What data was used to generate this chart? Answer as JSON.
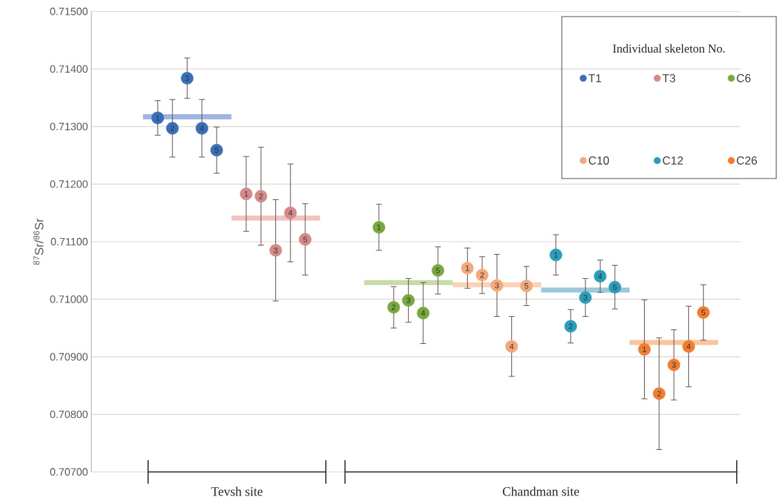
{
  "chart_data": {
    "type": "scatter",
    "ylabel": "$^{87}$Sr/$^{86}$Sr",
    "legend_title": "Individual skeleton No.",
    "categories": [
      null,
      null,
      null,
      null,
      null,
      null,
      null,
      null,
      null,
      null,
      null,
      null,
      null,
      null,
      null,
      null,
      null,
      null,
      null,
      null,
      null,
      null,
      null,
      null,
      null,
      null,
      null,
      null,
      null,
      null,
      null,
      null,
      null,
      null,
      null,
      null,
      null,
      null,
      null,
      null,
      null,
      null,
      null,
      null
    ],
    "ylim": [
      0.707,
      0.715
    ],
    "yticks": [
      {
        "value": 0.707,
        "label": "0.70700"
      },
      {
        "value": 0.708,
        "label": "0.70800"
      },
      {
        "value": 0.709,
        "label": "0.70900"
      },
      {
        "value": 0.71,
        "label": "0.71000"
      },
      {
        "value": 0.711,
        "label": "0.71100"
      },
      {
        "value": 0.712,
        "label": "0.71200"
      },
      {
        "value": 0.713,
        "label": "0.71300"
      },
      {
        "value": 0.714,
        "label": "0.71400"
      },
      {
        "value": 0.715,
        "label": "0.71500"
      }
    ],
    "grid": "y",
    "legend": "top right",
    "marker": "circle",
    "annotations": [
      "Tevsh site",
      "Chandman site",
      {
        "text": "1",
        "y": 0.71315
      },
      {
        "text": "2",
        "y": 0.71297
      },
      {
        "text": "3",
        "y": 0.71384
      },
      {
        "text": "4",
        "y": 0.71297
      },
      {
        "text": "5",
        "y": 0.71259
      },
      {
        "text": "1",
        "y": 0.71183
      },
      {
        "text": "2",
        "y": 0.71179
      },
      {
        "text": "3",
        "y": 0.71085
      },
      {
        "text": "4",
        "y": 0.7115
      },
      {
        "text": "5",
        "y": 0.71104
      },
      {
        "text": "1",
        "y": 0.71125
      },
      {
        "text": "2",
        "y": 0.70986
      },
      {
        "text": "3",
        "y": 0.70998
      },
      {
        "text": "4",
        "y": 0.70976
      },
      {
        "text": "5",
        "y": 0.7105
      },
      {
        "text": "1",
        "y": 0.71054
      },
      {
        "text": "2",
        "y": 0.71042
      },
      {
        "text": "3",
        "y": 0.71024
      },
      {
        "text": "4",
        "y": 0.70918
      },
      {
        "text": "5",
        "y": 0.71023
      },
      {
        "text": "1",
        "y": 0.71077
      },
      {
        "text": "2",
        "y": 0.70953
      },
      {
        "text": "3",
        "y": 0.71003
      },
      {
        "text": "4",
        "y": 0.7104
      },
      {
        "text": "5",
        "y": 0.71021
      },
      {
        "text": "1",
        "y": 0.70913
      },
      {
        "text": "2",
        "y": 0.70836
      },
      {
        "text": "3",
        "y": 0.70886
      },
      {
        "text": "4",
        "y": 0.70918
      },
      {
        "text": "5",
        "y": 0.70977
      }
    ],
    "series": [
      {
        "type": "line",
        "marker": "none",
        "color": "#9fb4e0",
        "values": [
          null,
          null,
          null,
          0.71317,
          0.71317,
          0.71317,
          0.71317,
          0.71317,
          0.71317,
          0.71317,
          null,
          null,
          null,
          null,
          null,
          null,
          null,
          null,
          null,
          null,
          null,
          null,
          null,
          null,
          null,
          null,
          null,
          null,
          null,
          null,
          null,
          null,
          null,
          null,
          null,
          null,
          null,
          null,
          null,
          null,
          null,
          null,
          null,
          null
        ]
      },
      {
        "type": "line",
        "marker": "none",
        "color": "#f2c2c0",
        "values": [
          null,
          null,
          null,
          null,
          null,
          null,
          null,
          null,
          null,
          0.71141,
          0.71141,
          0.71141,
          0.71141,
          0.71141,
          0.71141,
          0.71141,
          null,
          null,
          null,
          null,
          null,
          null,
          null,
          null,
          null,
          null,
          null,
          null,
          null,
          null,
          null,
          null,
          null,
          null,
          null,
          null,
          null,
          null,
          null,
          null,
          null,
          null,
          null,
          null
        ]
      },
      {
        "type": "line",
        "marker": "none",
        "color": "#c8dcaa",
        "values": [
          null,
          null,
          null,
          null,
          null,
          null,
          null,
          null,
          null,
          null,
          null,
          null,
          null,
          null,
          null,
          null,
          null,
          null,
          0.71029,
          0.71029,
          0.71029,
          0.71029,
          0.71029,
          0.71029,
          0.71029,
          null,
          null,
          null,
          null,
          null,
          null,
          null,
          null,
          null,
          null,
          null,
          null,
          null,
          null,
          null,
          null,
          null,
          null,
          null
        ]
      },
      {
        "type": "line",
        "marker": "none",
        "color": "#f9d2b8",
        "values": [
          null,
          null,
          null,
          null,
          null,
          null,
          null,
          null,
          null,
          null,
          null,
          null,
          null,
          null,
          null,
          null,
          null,
          null,
          null,
          null,
          null,
          null,
          null,
          null,
          0.71025,
          0.71025,
          0.71025,
          0.71025,
          0.71025,
          0.71025,
          0.71025,
          null,
          null,
          null,
          null,
          null,
          null,
          null,
          null,
          null,
          null,
          null,
          null,
          null
        ]
      },
      {
        "type": "line",
        "marker": "none",
        "color": "#9cc8dc",
        "values": [
          null,
          null,
          null,
          null,
          null,
          null,
          null,
          null,
          null,
          null,
          null,
          null,
          null,
          null,
          null,
          null,
          null,
          null,
          null,
          null,
          null,
          null,
          null,
          null,
          null,
          null,
          null,
          null,
          null,
          null,
          0.71016,
          0.71016,
          0.71016,
          0.71016,
          0.71016,
          0.71016,
          0.71016,
          null,
          null,
          null,
          null,
          null,
          null,
          null
        ]
      },
      {
        "type": "line",
        "marker": "none",
        "color": "#f9c4a0",
        "values": [
          null,
          null,
          null,
          null,
          null,
          null,
          null,
          null,
          null,
          null,
          null,
          null,
          null,
          null,
          null,
          null,
          null,
          null,
          null,
          null,
          null,
          null,
          null,
          null,
          null,
          null,
          null,
          null,
          null,
          null,
          null,
          null,
          null,
          null,
          null,
          null,
          0.70925,
          0.70925,
          0.70925,
          0.70925,
          0.70925,
          0.70925,
          0.70925,
          null
        ]
      },
      {
        "name": "T1",
        "color": "#3a6fb8",
        "values": [
          null,
          null,
          null,
          null,
          0.71315,
          0.71297,
          0.71384,
          0.71297,
          0.71259,
          null,
          null,
          null,
          null,
          null,
          null,
          null,
          null,
          null,
          null,
          null,
          null,
          null,
          null,
          null,
          null,
          null,
          null,
          null,
          null,
          null,
          null,
          null,
          null,
          null,
          null,
          null,
          null,
          null,
          null,
          null,
          null,
          null,
          null,
          null
        ],
        "errors": [
          null,
          null,
          null,
          null,
          0.0003,
          0.0005,
          0.00035,
          0.0005,
          0.0004,
          null,
          null,
          null,
          null,
          null,
          null,
          null,
          null,
          null,
          null,
          null,
          null,
          null,
          null,
          null,
          null,
          null,
          null,
          null,
          null,
          null,
          null,
          null,
          null,
          null,
          null,
          null,
          null,
          null,
          null,
          null,
          null,
          null,
          null,
          null
        ]
      },
      {
        "name": "T3",
        "color": "#d48a88",
        "values": [
          null,
          null,
          null,
          null,
          null,
          null,
          null,
          null,
          null,
          null,
          0.71183,
          0.71179,
          0.71085,
          0.7115,
          0.71104,
          null,
          null,
          null,
          null,
          null,
          null,
          null,
          null,
          null,
          null,
          null,
          null,
          null,
          null,
          null,
          null,
          null,
          null,
          null,
          null,
          null,
          null,
          null,
          null,
          null,
          null,
          null,
          null,
          null
        ],
        "errors": [
          null,
          null,
          null,
          null,
          null,
          null,
          null,
          null,
          null,
          null,
          0.00065,
          0.00085,
          0.00088,
          0.00085,
          0.00062,
          null,
          null,
          null,
          null,
          null,
          null,
          null,
          null,
          null,
          null,
          null,
          null,
          null,
          null,
          null,
          null,
          null,
          null,
          null,
          null,
          null,
          null,
          null,
          null,
          null,
          null,
          null,
          null,
          null
        ]
      },
      {
        "name": "C6",
        "color": "#78a840",
        "values": [
          null,
          null,
          null,
          null,
          null,
          null,
          null,
          null,
          null,
          null,
          null,
          null,
          null,
          null,
          null,
          null,
          null,
          null,
          null,
          0.71125,
          0.70986,
          0.70998,
          0.70976,
          0.7105,
          null,
          null,
          null,
          null,
          null,
          null,
          null,
          null,
          null,
          null,
          null,
          null,
          null,
          null,
          null,
          null,
          null,
          null,
          null,
          null
        ],
        "errors": [
          null,
          null,
          null,
          null,
          null,
          null,
          null,
          null,
          null,
          null,
          null,
          null,
          null,
          null,
          null,
          null,
          null,
          null,
          null,
          0.0004,
          0.00036,
          0.00038,
          0.00053,
          0.00041,
          null,
          null,
          null,
          null,
          null,
          null,
          null,
          null,
          null,
          null,
          null,
          null,
          null,
          null,
          null,
          null,
          null,
          null,
          null,
          null
        ]
      },
      {
        "name": "C10",
        "color": "#f5a87c",
        "values": [
          null,
          null,
          null,
          null,
          null,
          null,
          null,
          null,
          null,
          null,
          null,
          null,
          null,
          null,
          null,
          null,
          null,
          null,
          null,
          null,
          null,
          null,
          null,
          null,
          null,
          0.71054,
          0.71042,
          0.71024,
          0.70918,
          0.71023,
          null,
          null,
          null,
          null,
          null,
          null,
          null,
          null,
          null,
          null,
          null,
          null,
          null,
          null
        ],
        "errors": [
          null,
          null,
          null,
          null,
          null,
          null,
          null,
          null,
          null,
          null,
          null,
          null,
          null,
          null,
          null,
          null,
          null,
          null,
          null,
          null,
          null,
          null,
          null,
          null,
          null,
          0.00035,
          0.00032,
          0.00054,
          0.00052,
          0.00034,
          null,
          null,
          null,
          null,
          null,
          null,
          null,
          null,
          null,
          null,
          null,
          null,
          null,
          null
        ]
      },
      {
        "name": "C12",
        "color": "#2b9cba",
        "values": [
          null,
          null,
          null,
          null,
          null,
          null,
          null,
          null,
          null,
          null,
          null,
          null,
          null,
          null,
          null,
          null,
          null,
          null,
          null,
          null,
          null,
          null,
          null,
          null,
          null,
          null,
          null,
          null,
          null,
          null,
          null,
          0.71077,
          0.70953,
          0.71003,
          0.7104,
          0.71021,
          null,
          null,
          null,
          null,
          null,
          null,
          null,
          null
        ],
        "errors": [
          null,
          null,
          null,
          null,
          null,
          null,
          null,
          null,
          null,
          null,
          null,
          null,
          null,
          null,
          null,
          null,
          null,
          null,
          null,
          null,
          null,
          null,
          null,
          null,
          null,
          null,
          null,
          null,
          null,
          null,
          null,
          0.00035,
          0.00029,
          0.00033,
          0.00028,
          0.00038,
          null,
          null,
          null,
          null,
          null,
          null,
          null,
          null
        ]
      },
      {
        "name": "C26",
        "color": "#f07e32",
        "values": [
          null,
          null,
          null,
          null,
          null,
          null,
          null,
          null,
          null,
          null,
          null,
          null,
          null,
          null,
          null,
          null,
          null,
          null,
          null,
          null,
          null,
          null,
          null,
          null,
          null,
          null,
          null,
          null,
          null,
          null,
          null,
          null,
          null,
          null,
          null,
          null,
          null,
          0.70913,
          0.70836,
          0.70886,
          0.70918,
          0.70977,
          null,
          null
        ],
        "errors": [
          null,
          null,
          null,
          null,
          null,
          null,
          null,
          null,
          null,
          null,
          null,
          null,
          null,
          null,
          null,
          null,
          null,
          null,
          null,
          null,
          null,
          null,
          null,
          null,
          null,
          null,
          null,
          null,
          null,
          null,
          null,
          null,
          null,
          null,
          null,
          null,
          null,
          0.00086,
          0.00097,
          0.00061,
          0.0007,
          0.00048,
          null,
          null
        ]
      }
    ]
  }
}
